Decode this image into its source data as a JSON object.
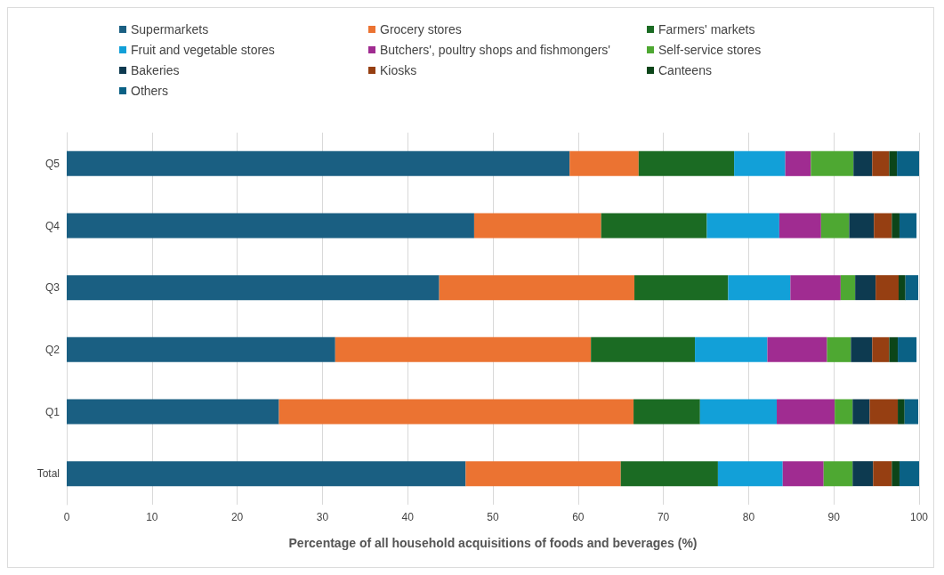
{
  "chart_data": {
    "type": "bar",
    "orientation": "horizontal",
    "stacked": true,
    "xlabel": "Percentage of all household acquisitions of foods and beverages (%)",
    "categories": [
      "Q5",
      "Q4",
      "Q3",
      "Q2",
      "Q1",
      "Total"
    ],
    "xlim": [
      0,
      100
    ],
    "xticks": [
      0,
      10,
      20,
      30,
      40,
      50,
      60,
      70,
      80,
      90,
      100
    ],
    "grid": "x",
    "legend": "top",
    "series": [
      {
        "name": "Supermarkets",
        "color": "#1a5f82",
        "values": [
          59.0,
          47.8,
          43.7,
          31.5,
          24.9,
          46.8
        ]
      },
      {
        "name": "Grocery stores",
        "color": "#eb7332",
        "values": [
          8.1,
          14.9,
          22.9,
          30.0,
          41.6,
          18.2
        ]
      },
      {
        "name": "Farmers' markets",
        "color": "#1b6b23",
        "values": [
          11.2,
          12.4,
          11.0,
          12.2,
          7.8,
          11.4
        ]
      },
      {
        "name": "Fruit and vegetable stores",
        "color": "#12a0d8",
        "values": [
          6.0,
          8.5,
          7.3,
          8.5,
          9.0,
          7.6
        ]
      },
      {
        "name": "Butchers', poultry shops and fishmongers'",
        "color": "#a02c91",
        "values": [
          3.0,
          4.9,
          5.9,
          7.0,
          6.8,
          4.8
        ]
      },
      {
        "name": "Self-service stores",
        "color": "#4ea832",
        "values": [
          5.0,
          3.3,
          1.7,
          2.8,
          2.1,
          3.4
        ]
      },
      {
        "name": "Bakeries",
        "color": "#0d3a50",
        "values": [
          2.2,
          2.9,
          2.4,
          2.5,
          2.0,
          2.4
        ]
      },
      {
        "name": "Kiosks",
        "color": "#963f12",
        "values": [
          2.0,
          2.1,
          2.7,
          2.0,
          3.3,
          2.2
        ]
      },
      {
        "name": "Canteens",
        "color": "#0c4519",
        "values": [
          0.9,
          0.9,
          0.8,
          1.0,
          0.8,
          0.9
        ]
      },
      {
        "name": "Others",
        "color": "#0a6185",
        "values": [
          2.6,
          2.0,
          1.5,
          2.2,
          1.6,
          2.3
        ]
      }
    ]
  }
}
